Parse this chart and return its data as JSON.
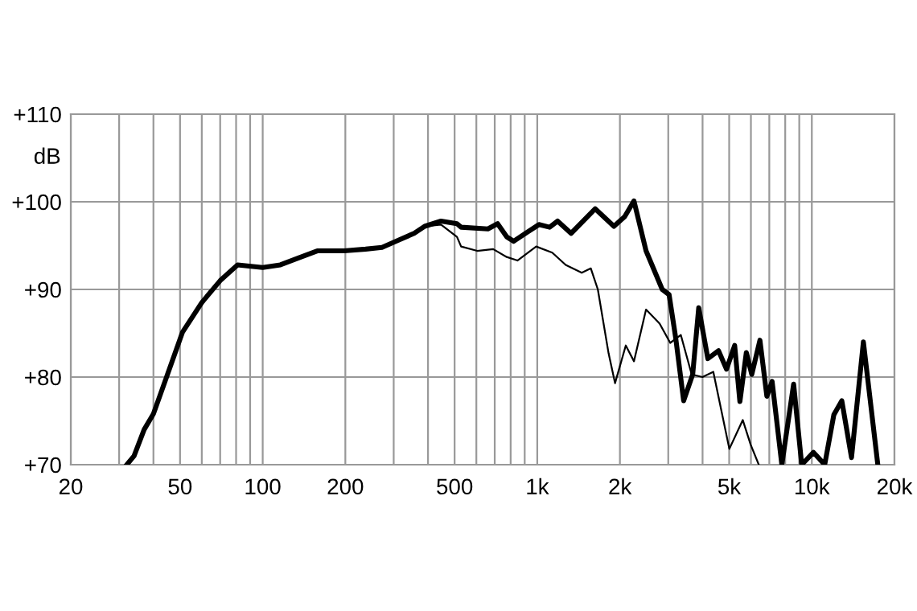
{
  "chart_data": {
    "type": "line",
    "ylabel": "dB",
    "xlim": [
      20,
      20000
    ],
    "ylim": [
      70,
      110
    ],
    "log": "x",
    "grid": true,
    "line_style": "solid",
    "marker": "none",
    "xticks": [
      20,
      {
        "value": 30,
        "label": null
      },
      {
        "value": 40,
        "label": null
      },
      50,
      {
        "value": 60,
        "label": null
      },
      {
        "value": 70,
        "label": null
      },
      {
        "value": 80,
        "label": null
      },
      {
        "value": 90,
        "label": null
      },
      100,
      200,
      {
        "value": 300,
        "label": null
      },
      {
        "value": 400,
        "label": null
      },
      500,
      {
        "value": 600,
        "label": null
      },
      {
        "value": 700,
        "label": null
      },
      {
        "value": 800,
        "label": null
      },
      {
        "value": 900,
        "label": null
      },
      {
        "value": 1000,
        "label": "1k"
      },
      {
        "value": 2000,
        "label": "2k"
      },
      {
        "value": 3000,
        "label": null
      },
      {
        "value": 4000,
        "label": null
      },
      {
        "value": 5000,
        "label": "5k"
      },
      {
        "value": 6000,
        "label": null
      },
      {
        "value": 7000,
        "label": null
      },
      {
        "value": 8000,
        "label": null
      },
      {
        "value": 9000,
        "label": null
      },
      {
        "value": 10000,
        "label": "10k"
      },
      {
        "value": 20000,
        "label": "20k"
      }
    ],
    "yticks": [
      {
        "value": 70,
        "label": "+70"
      },
      {
        "value": 80,
        "label": "+80"
      },
      {
        "value": 90,
        "label": "+90"
      },
      {
        "value": 100,
        "label": "+100"
      },
      {
        "value": 110,
        "label": "+110"
      }
    ],
    "series": [
      {
        "color": "#000000",
        "x": [
          32,
          34,
          37,
          40,
          45,
          51,
          60,
          70,
          81,
          100,
          116,
          138,
          158,
          181,
          198,
          237,
          272,
          311,
          356,
          389,
          446,
          510,
          528,
          661,
          717,
          774,
          821,
          906,
          1014,
          1109,
          1186,
          1328,
          1626,
          1902,
          2081,
          2250,
          2490,
          2852,
          3021,
          3192,
          3413,
          3682,
          3873,
          4181,
          4572,
          4890,
          5236,
          5470,
          5774,
          6043,
          6471,
          6859,
          7167,
          7776,
          8585,
          9186,
          10140,
          11140,
          12030,
          12860,
          13950,
          15410,
          17390
        ],
        "values": [
          70,
          71,
          74,
          75.8,
          80.3,
          85.1,
          88.5,
          91,
          92.8,
          92.5,
          92.8,
          93.7,
          94.4,
          94.4,
          94.4,
          94.6,
          94.8,
          95.6,
          96.4,
          97.2,
          97.8,
          97.5,
          97.1,
          96.9,
          97.5,
          96,
          95.5,
          96.4,
          97.4,
          97.1,
          97.8,
          96.4,
          99.2,
          97.2,
          98.3,
          100.1,
          94.4,
          90,
          89.4,
          84.5,
          77.3,
          80.3,
          87.9,
          82.1,
          83,
          80.9,
          83.6,
          77.2,
          82.8,
          80.3,
          84.2,
          77.8,
          79.5,
          70,
          79.2,
          70,
          71.4,
          70,
          75.7,
          77.3,
          70.8,
          84,
          70
        ]
      },
      {
        "color": "#000000",
        "x": [
          389,
          446,
          510,
          528,
          604,
          691,
          774,
          847,
          991,
          1134,
          1269,
          1452,
          1567,
          1662,
          1819,
          1920,
          2101,
          2250,
          2490,
          2790,
          3050,
          3334,
          3651,
          3997,
          4377,
          5007,
          5603,
          5984,
          6409
        ],
        "values": [
          97.2,
          97.4,
          96,
          94.9,
          94.4,
          94.6,
          93.7,
          93.3,
          94.9,
          94.2,
          92.8,
          91.9,
          92.4,
          90,
          82.7,
          79.3,
          83.6,
          81.8,
          87.7,
          86.1,
          83.9,
          84.8,
          80.3,
          80,
          80.6,
          71.8,
          75.1,
          72.3,
          70
        ]
      }
    ]
  }
}
